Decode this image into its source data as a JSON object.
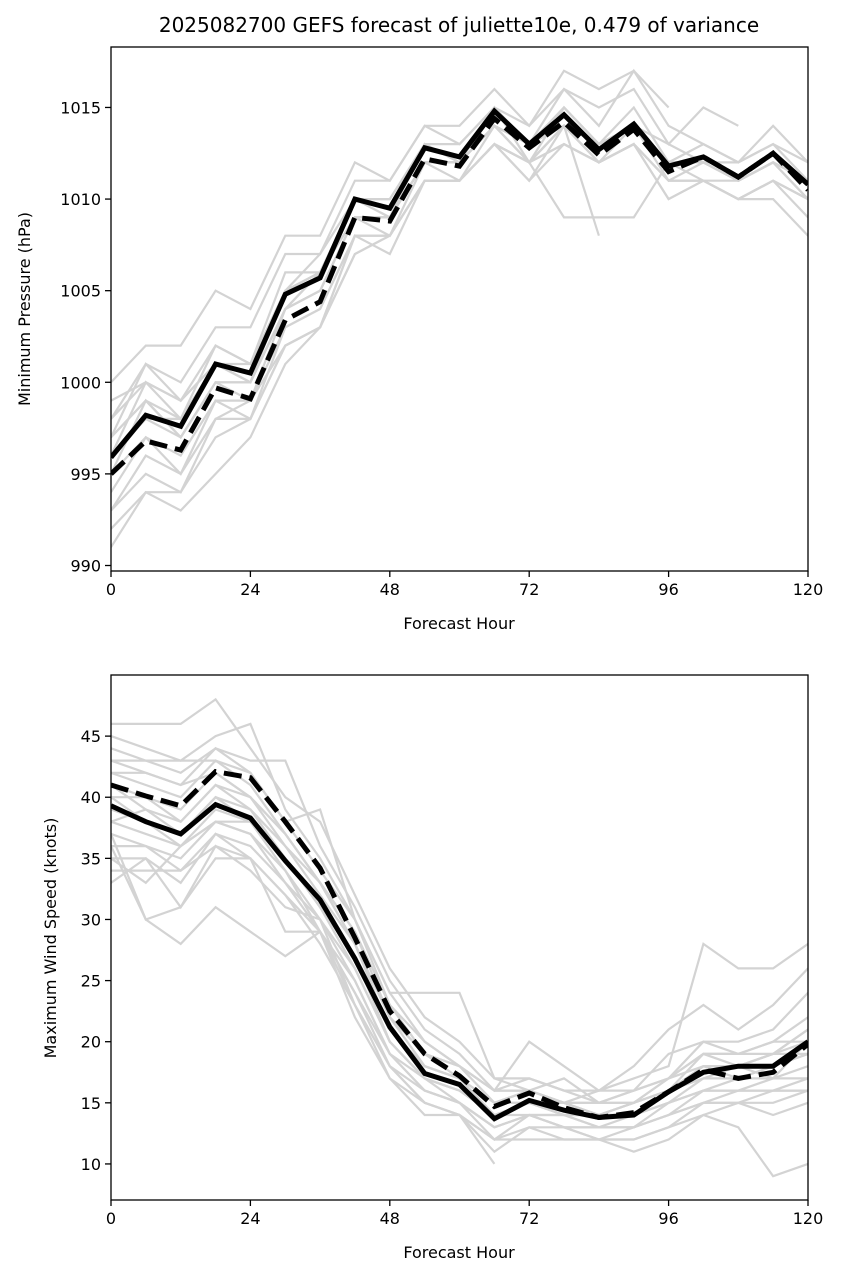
{
  "figure": {
    "title": "2025082700 GEFS forecast of juliette10e, 0.479 of variance"
  },
  "colors": {
    "ensemble_member": "#d3d3d3",
    "mean": "#000000",
    "axis": "#000000"
  },
  "chart_data": [
    {
      "type": "line",
      "title": "2025082700 GEFS forecast of juliette10e, 0.479 of variance",
      "xlabel": "Forecast Hour",
      "ylabel": "Minimum Pressure (hPa)",
      "xlim": [
        0,
        120
      ],
      "ylim": [
        989.7,
        1018.3
      ],
      "xticks": [
        0,
        24,
        48,
        72,
        96,
        120
      ],
      "xtick_labels": [
        "0",
        "24",
        "48",
        "72",
        "96",
        "120"
      ],
      "yticks": [
        990,
        995,
        1000,
        1005,
        1010,
        1015
      ],
      "ytick_labels": [
        "990",
        "995",
        "1000",
        "1005",
        "1010",
        "1015"
      ],
      "grid": false,
      "x": [
        0,
        6,
        12,
        18,
        24,
        30,
        36,
        42,
        48,
        54,
        60,
        66,
        72,
        78,
        84,
        90,
        96,
        102,
        108,
        114,
        120
      ],
      "series": [
        {
          "name": "mean",
          "style": "solid",
          "values": [
            995.9,
            998.2,
            997.6,
            1001.0,
            1000.5,
            1004.8,
            1005.7,
            1010.0,
            1009.5,
            1012.8,
            1012.3,
            1014.8,
            1013.0,
            1014.6,
            1012.7,
            1014.1,
            1011.8,
            1012.3,
            1011.2,
            1012.5,
            1010.8
          ]
        },
        {
          "name": "weighted",
          "style": "dashed",
          "values": [
            995.0,
            996.8,
            996.3,
            999.7,
            999.1,
            1003.4,
            1004.4,
            1009.0,
            1008.8,
            1012.2,
            1011.8,
            1014.4,
            1012.8,
            1014.2,
            1012.4,
            1013.8,
            1011.5,
            1012.3,
            1011.2,
            1012.5,
            1010.5
          ]
        }
      ],
      "members": [
        [
          1000,
          1002,
          1002,
          1005,
          1004,
          1008,
          1008,
          1012,
          1011,
          1014,
          1014,
          1016,
          1014,
          1016,
          1014,
          1017,
          1014,
          1013,
          1012,
          1014,
          1012
        ],
        [
          998,
          1001,
          1000,
          1003,
          1003,
          1007,
          1007,
          1011,
          1011,
          1014,
          1013,
          1015,
          1014,
          1017,
          1016,
          1017,
          1015,
          null,
          null,
          null,
          null
        ],
        [
          997,
          1001,
          999,
          1002,
          1001,
          1006,
          1006,
          1010,
          1010,
          1013,
          1013,
          1015,
          1013,
          1016,
          1015,
          1016,
          1013,
          1015,
          1014,
          null,
          null
        ],
        [
          996,
          1000,
          998,
          1002,
          1001,
          1005,
          1006,
          1010,
          1009,
          1013,
          1012,
          1015,
          1012,
          1015,
          1013,
          1015,
          1012,
          1013,
          1012,
          1013,
          1012
        ],
        [
          999,
          1000,
          999,
          1001,
          1001,
          1005,
          1007,
          1010,
          1010,
          1013,
          1012,
          1014,
          1013,
          1015,
          1013,
          1014,
          1012,
          1012,
          1012,
          1013,
          1011
        ],
        [
          997,
          999,
          998,
          1001,
          1000,
          1004,
          1006,
          1009,
          1009,
          1012,
          1012,
          1014,
          1012,
          1014,
          1012,
          1014,
          1011,
          1012,
          1011,
          1012,
          1011
        ],
        [
          996,
          998,
          997,
          1000,
          1000,
          1004,
          1005,
          1009,
          1009,
          1012,
          1012,
          1014,
          1013,
          1014,
          1013,
          1014,
          1012,
          1012,
          1011,
          1012,
          1010
        ],
        [
          995,
          999,
          997,
          1000,
          999,
          1004,
          1005,
          1009,
          1008,
          1012,
          1011,
          1014,
          1012,
          1014,
          1012,
          1013,
          1011,
          1011,
          1011,
          1012,
          1010
        ],
        [
          994,
          997,
          996,
          999,
          999,
          1003,
          1004,
          1008,
          1008,
          1011,
          1011,
          1013,
          1012,
          1013,
          1012,
          1013,
          1011,
          1011,
          1010,
          1011,
          1010
        ],
        [
          993,
          996,
          995,
          998,
          998,
          1003,
          1004,
          1008,
          1008,
          1011,
          1011,
          1013,
          1011,
          1013,
          1012,
          1013,
          1010,
          1011,
          1010,
          1011,
          1009
        ],
        [
          995,
          997,
          995,
          999,
          998,
          1002,
          1003,
          1007,
          1008,
          1011,
          1011,
          1013,
          1011,
          1014,
          1012,
          1013,
          1010,
          1011,
          1010,
          1011,
          1010
        ],
        [
          993,
          995,
          994,
          998,
          999,
          1002,
          1003,
          1008,
          1007,
          1011,
          1011,
          1013,
          1012,
          1014,
          1008,
          null,
          null,
          null,
          null,
          null,
          null
        ],
        [
          991,
          994,
          994,
          997,
          998,
          1002,
          1003,
          1007,
          1008,
          1011,
          1011,
          1013,
          1012,
          1009,
          1009,
          1009,
          1012,
          1011,
          1010,
          1011,
          1010
        ],
        [
          992,
          994,
          993,
          995,
          997,
          1001,
          1003,
          1008,
          1008,
          1011,
          1011,
          1013,
          1012,
          1013,
          1012,
          1013,
          1011,
          1011,
          1010,
          1010,
          1008
        ],
        [
          998,
          1000,
          999,
          1001,
          1000,
          1004,
          1006,
          1009,
          1009,
          1012,
          1012,
          1014,
          1013,
          1014,
          1013,
          1014,
          1012,
          1012,
          1011,
          1012,
          1011
        ],
        [
          997,
          999,
          997,
          1000,
          1000,
          1005,
          1006,
          1010,
          1009,
          1012,
          1012,
          1014,
          1013,
          1015,
          1013,
          1014,
          1012,
          1012,
          1011,
          1012,
          1011
        ],
        [
          996,
          998,
          998,
          1001,
          1000,
          1004,
          1005,
          1009,
          1009,
          1012,
          1012,
          1014,
          1013,
          1014,
          1013,
          1014,
          1013,
          1012,
          1011,
          1012,
          1011
        ]
      ]
    },
    {
      "type": "line",
      "title": "",
      "xlabel": "Forecast Hour",
      "ylabel": "Maximum Wind Speed (knots)",
      "xlim": [
        0,
        120
      ],
      "ylim": [
        7.05,
        50.0
      ],
      "xticks": [
        0,
        24,
        48,
        72,
        96,
        120
      ],
      "xtick_labels": [
        "0",
        "24",
        "48",
        "72",
        "96",
        "120"
      ],
      "yticks": [
        10,
        15,
        20,
        25,
        30,
        35,
        40,
        45
      ],
      "ytick_labels": [
        "10",
        "15",
        "20",
        "25",
        "30",
        "35",
        "40",
        "45"
      ],
      "grid": false,
      "x": [
        0,
        6,
        12,
        18,
        24,
        30,
        36,
        42,
        48,
        54,
        60,
        66,
        72,
        78,
        84,
        90,
        96,
        102,
        108,
        114,
        120
      ],
      "series": [
        {
          "name": "mean",
          "style": "solid",
          "values": [
            39.3,
            38.0,
            37.0,
            39.4,
            38.3,
            34.8,
            31.6,
            26.8,
            21.2,
            17.4,
            16.5,
            13.7,
            15.2,
            14.4,
            13.8,
            14.0,
            15.9,
            17.5,
            18.0,
            18.0,
            20.0
          ]
        },
        {
          "name": "weighted",
          "style": "dashed",
          "values": [
            41.0,
            40.1,
            39.3,
            42.1,
            41.6,
            38.0,
            34.2,
            28.5,
            22.5,
            19.0,
            17.2,
            14.7,
            15.8,
            14.6,
            13.8,
            14.2,
            15.9,
            17.7,
            17.0,
            17.5,
            19.8
          ]
        }
      ],
      "members": [
        [
          46,
          46,
          46,
          48,
          44,
          40,
          38,
          32,
          26,
          22,
          20,
          17,
          17,
          16,
          16,
          17,
          18,
          28,
          26,
          26,
          28
        ],
        [
          45,
          44,
          43,
          45,
          46,
          39,
          35,
          30,
          24,
          24,
          24,
          17,
          16,
          15,
          16,
          18,
          21,
          23,
          21,
          23,
          26
        ],
        [
          44,
          43,
          42,
          44,
          43,
          43,
          36,
          31,
          25,
          21,
          19,
          16,
          17,
          16,
          15,
          16,
          19,
          20,
          20,
          21,
          24
        ],
        [
          43,
          43,
          43,
          43,
          42,
          38,
          39,
          30,
          24,
          20,
          18,
          16,
          20,
          18,
          16,
          16,
          17,
          20,
          19,
          19,
          21
        ],
        [
          42,
          42,
          41,
          44,
          42,
          38,
          34,
          30,
          23,
          20,
          18,
          16,
          16,
          17,
          15,
          15,
          16,
          19,
          19,
          20,
          20
        ],
        [
          42,
          41,
          40,
          43,
          41,
          37,
          33,
          29,
          22,
          19,
          18,
          15,
          16,
          15,
          15,
          15,
          17,
          18,
          18,
          19,
          19
        ],
        [
          41,
          40,
          39,
          42,
          40,
          37,
          33,
          28,
          22,
          19,
          17,
          15,
          16,
          15,
          14,
          15,
          16,
          18,
          18,
          18,
          20
        ],
        [
          40,
          40,
          38,
          41,
          40,
          36,
          32,
          28,
          21,
          18,
          17,
          15,
          15,
          15,
          14,
          14,
          16,
          17,
          18,
          17,
          20
        ],
        [
          40,
          38,
          37,
          40,
          39,
          35,
          31,
          27,
          21,
          18,
          17,
          14,
          15,
          14,
          14,
          14,
          15,
          17,
          17,
          18,
          19
        ],
        [
          39,
          38,
          36,
          39,
          38,
          35,
          31,
          26,
          20,
          17,
          16,
          14,
          15,
          14,
          13,
          14,
          15,
          16,
          17,
          17,
          18
        ],
        [
          38,
          37,
          36,
          38,
          38,
          34,
          30,
          26,
          20,
          17,
          16,
          14,
          14,
          14,
          13,
          13,
          15,
          16,
          16,
          17,
          17
        ],
        [
          37,
          36,
          35,
          38,
          37,
          33,
          30,
          25,
          19,
          16,
          15,
          13,
          14,
          13,
          13,
          13,
          14,
          16,
          16,
          16,
          17
        ],
        [
          36,
          36,
          34,
          37,
          36,
          33,
          29,
          24,
          19,
          16,
          15,
          13,
          14,
          13,
          13,
          13,
          14,
          15,
          16,
          16,
          16
        ],
        [
          35,
          35,
          33,
          37,
          35,
          32,
          29,
          24,
          18,
          16,
          15,
          12,
          14,
          13,
          12,
          13,
          14,
          15,
          15,
          15,
          16
        ],
        [
          34,
          34,
          34,
          36,
          35,
          32,
          28,
          23,
          18,
          15,
          14,
          12,
          13,
          13,
          12,
          12,
          13,
          15,
          15,
          16,
          16
        ],
        [
          33,
          35,
          31,
          36,
          34,
          31,
          30,
          23,
          18,
          15,
          14,
          11,
          13,
          12,
          12,
          12,
          13,
          14,
          15,
          14,
          15
        ],
        [
          37,
          30,
          31,
          35,
          35,
          29,
          29,
          22,
          17,
          15,
          14,
          10,
          null,
          null,
          null,
          null,
          null,
          null,
          null,
          null,
          null
        ],
        [
          36,
          30,
          28,
          31,
          29,
          27,
          29,
          23,
          17,
          14,
          14,
          12,
          12,
          12,
          12,
          11,
          12,
          14,
          13,
          9,
          10
        ],
        [
          35,
          33,
          36,
          38,
          37,
          34,
          29,
          25,
          19,
          17,
          15,
          13,
          14,
          14,
          14,
          14,
          16,
          18,
          17,
          18,
          19
        ],
        [
          38,
          39,
          37,
          40,
          38,
          35,
          31,
          27,
          20,
          17,
          16,
          14,
          15,
          14,
          14,
          15,
          16,
          18,
          18,
          19,
          20
        ],
        [
          41,
          39,
          38,
          41,
          39,
          36,
          33,
          28,
          22,
          18,
          17,
          15,
          15,
          15,
          14,
          15,
          17,
          19,
          18,
          19,
          21
        ],
        [
          43,
          42,
          41,
          42,
          40,
          37,
          33,
          29,
          23,
          19,
          18,
          16,
          16,
          15,
          15,
          16,
          17,
          19,
          19,
          20,
          22
        ]
      ]
    }
  ]
}
